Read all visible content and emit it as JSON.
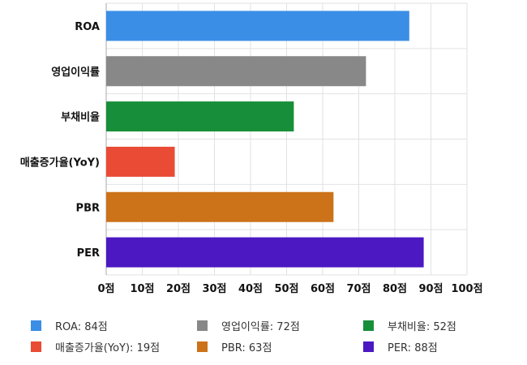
{
  "chart_data": {
    "type": "bar",
    "orientation": "horizontal",
    "categories": [
      "ROA",
      "영업이익률",
      "부채비율",
      "매출증가율(YoY)",
      "PBR",
      "PER"
    ],
    "values": [
      84,
      72,
      52,
      19,
      63,
      88
    ],
    "colors": [
      "#3a8ee6",
      "#888888",
      "#178f3a",
      "#e94b35",
      "#cc7219",
      "#4b18c2"
    ],
    "xlim": [
      0,
      100
    ],
    "xticks": [
      "0점",
      "10점",
      "20점",
      "30점",
      "40점",
      "50점",
      "60점",
      "70점",
      "80점",
      "90점",
      "100점"
    ],
    "grid": true,
    "legend_position": "bottom"
  },
  "legend": [
    {
      "label": "ROA: 84점",
      "color": "#3a8ee6"
    },
    {
      "label": "영업이익률: 72점",
      "color": "#888888"
    },
    {
      "label": "부채비율: 52점",
      "color": "#178f3a"
    },
    {
      "label": "매출증가율(YoY): 19점",
      "color": "#e94b35"
    },
    {
      "label": "PBR: 63점",
      "color": "#cc7219"
    },
    {
      "label": "PER: 88점",
      "color": "#4b18c2"
    }
  ]
}
